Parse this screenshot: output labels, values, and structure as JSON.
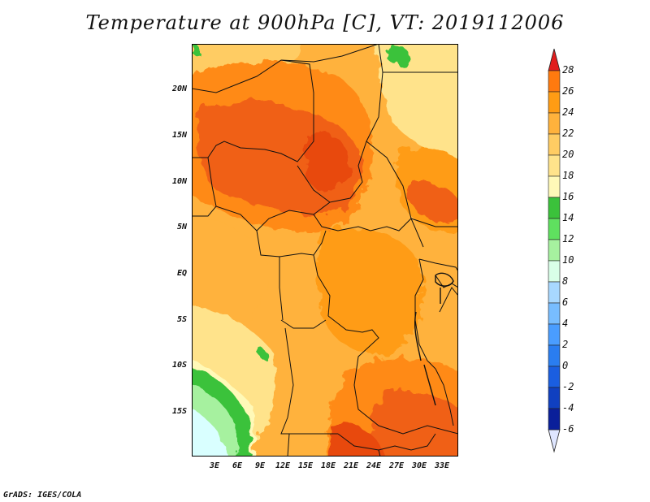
{
  "title": "Temperature at 900hPa [C], VT: 2019112006",
  "credit": "GrADS: IGES/COLA",
  "map": {
    "region": "Central Africa",
    "lat_range": [
      -20,
      25
    ],
    "lon_range": [
      0,
      35
    ],
    "lat_labels": [
      "20N",
      "15N",
      "10N",
      "5N",
      "EQ",
      "5S",
      "10S",
      "15S"
    ],
    "lon_labels": [
      "3E",
      "6E",
      "9E",
      "12E",
      "15E",
      "18E",
      "21E",
      "24E",
      "27E",
      "30E",
      "33E"
    ]
  },
  "colorbar": {
    "labels": [
      "28",
      "26",
      "24",
      "22",
      "20",
      "18",
      "16",
      "14",
      "12",
      "10",
      "8",
      "6",
      "4",
      "2",
      "0",
      "-2",
      "-4",
      "-6"
    ],
    "colors": [
      "#ff5a19",
      "#ff7a0f",
      "#ff9c14",
      "#ffb23c",
      "#ffcc63",
      "#ffe38b",
      "#fff9b8",
      "#3bc23b",
      "#5fe05f",
      "#a6f19f",
      "#d9ffe8",
      "#a8d8ff",
      "#78bdff",
      "#4a9dff",
      "#2a7df0",
      "#1a5ee0",
      "#1040c0",
      "#0a1f9a",
      "#08105a"
    ],
    "top_arrow_color": "#e11e1e",
    "bottom_arrow_color": "#dfe6ff"
  },
  "colors": {
    "hot": "#e84a10",
    "warm": "#ff8a14",
    "mild": "#ffb23c",
    "cool": "#ffe38b",
    "green": "#3bc23b",
    "lightgreen": "#a6f19f",
    "pale": "#d9ffff"
  }
}
